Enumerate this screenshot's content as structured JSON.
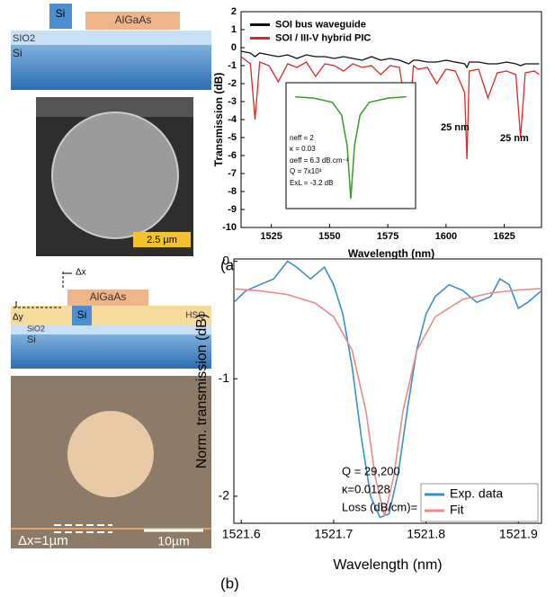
{
  "figure": {
    "panel_a": {
      "label": "(a)",
      "schematic": {
        "top_left": "Si",
        "top_right": "AlGaAs",
        "middle": "SIO2",
        "bottom": "Si"
      },
      "sem_image": {
        "scale_bar": "2.5 µm"
      }
    },
    "panel_b": {
      "label": "(b)",
      "schematic": {
        "dx": "Δx",
        "dy": "Δy",
        "cladding": "AlGaAs",
        "waveguide": "Si",
        "hsq": "HSQ",
        "oxide": "SiO2",
        "substrate": "Si"
      },
      "microscope_image": {
        "offset": "Δx=1µm",
        "scale_bar": "10µm"
      }
    }
  },
  "chart_data": [
    {
      "type": "line",
      "xlabel": "Wavelength (nm)",
      "ylabel": "Transmission (dB)",
      "x": [
        1512,
        1516,
        1518,
        1520,
        1524,
        1528,
        1532,
        1536,
        1540,
        1544,
        1548,
        1552,
        1556,
        1560,
        1564,
        1568,
        1572,
        1576,
        1580,
        1584,
        1586,
        1588,
        1592,
        1596,
        1600,
        1604,
        1608,
        1609,
        1610,
        1614,
        1618,
        1622,
        1626,
        1630,
        1632,
        1634,
        1638,
        1640
      ],
      "series": [
        {
          "name": "SOI bus waveguide",
          "color": "#111111",
          "values": [
            -0.2,
            -0.3,
            -0.5,
            -0.3,
            -0.4,
            -0.5,
            -0.4,
            -0.6,
            -0.4,
            -0.5,
            -0.5,
            -0.6,
            -0.5,
            -0.6,
            -0.7,
            -0.5,
            -0.7,
            -0.6,
            -0.7,
            -0.9,
            -0.7,
            -0.7,
            -0.8,
            -0.8,
            -0.7,
            -0.8,
            -0.9,
            -1.1,
            -0.8,
            -0.8,
            -0.9,
            -0.9,
            -0.8,
            -0.9,
            -1.0,
            -0.9,
            -0.9,
            -0.9
          ]
        },
        {
          "name": "SOI / III-V hybrid PIC",
          "color": "#d42a2a",
          "values": [
            -0.5,
            -0.9,
            -4,
            -0.8,
            -1.0,
            -1.9,
            -0.9,
            -1.1,
            -0.8,
            -1.6,
            -0.9,
            -1.0,
            -1.3,
            -0.9,
            -1.1,
            -1.0,
            -1.5,
            -1.0,
            -1.1,
            -4.5,
            -1.0,
            -1.2,
            -1.1,
            -2.0,
            -1.2,
            -1.3,
            -2.5,
            -6.2,
            -1.3,
            -1.2,
            -2.8,
            -1.4,
            -1.3,
            -1.5,
            -5.0,
            -1.4,
            -1.3,
            -1.5
          ]
        }
      ],
      "xlim": [
        1512,
        1641
      ],
      "xticks": [
        1525,
        1550,
        1575,
        1600,
        1625
      ],
      "ylim": [
        -10,
        2
      ],
      "yticks": [
        -10,
        -9,
        -8,
        -7,
        -6,
        -5,
        -4,
        -3,
        -2,
        -1,
        0,
        1,
        2
      ],
      "legend": "upper left",
      "grid": false,
      "annotations": [
        "25 nm",
        "25 nm"
      ]
    },
    {
      "type": "line",
      "x": [
        1558,
        1559,
        1560,
        1560.5,
        1560.8,
        1561,
        1561.2,
        1561.5,
        1562,
        1563,
        1564
      ],
      "values": [
        -1,
        -1.1,
        -1.4,
        -2.3,
        -4.5,
        -8.3,
        -4.5,
        -2.3,
        -1.4,
        -1.1,
        -1
      ],
      "color": "#3a9a2a",
      "xlim": [
        1557.5,
        1564.5
      ],
      "ylim": [
        -9,
        0
      ],
      "grid": false,
      "annotations": [
        "neff = 2",
        "κ = 0.03",
        "αeff = 6.3 dB.cm⁻¹",
        "Q = 7x10³",
        "ExL = -3.2 dB"
      ]
    },
    {
      "type": "line",
      "xlabel": "Wavelength (nm)",
      "ylabel": "Norm. transmission (dB)",
      "series": [
        {
          "name": "Exp. data",
          "color": "#3a8fc8",
          "x": [
            1521.592,
            1521.605,
            1521.62,
            1521.635,
            1521.65,
            1521.66,
            1521.675,
            1521.69,
            1521.7,
            1521.71,
            1521.72,
            1521.73,
            1521.74,
            1521.75,
            1521.76,
            1521.77,
            1521.78,
            1521.79,
            1521.8,
            1521.81,
            1521.825,
            1521.84,
            1521.855,
            1521.87,
            1521.88,
            1521.89,
            1521.9,
            1521.91,
            1521.925
          ],
          "values": [
            -0.35,
            -0.25,
            -0.2,
            -0.15,
            0,
            -0.05,
            -0.15,
            -0.05,
            -0.2,
            -0.45,
            -0.9,
            -1.5,
            -2.0,
            -2.18,
            -2.15,
            -1.8,
            -1.25,
            -0.75,
            -0.45,
            -0.3,
            -0.2,
            -0.25,
            -0.35,
            -0.3,
            -0.15,
            -0.2,
            -0.4,
            -0.35,
            -0.25
          ]
        },
        {
          "name": "Fit",
          "color": "#e88a8a",
          "x": [
            1521.592,
            1521.62,
            1521.65,
            1521.68,
            1521.7,
            1521.72,
            1521.735,
            1521.745,
            1521.755,
            1521.765,
            1521.775,
            1521.79,
            1521.81,
            1521.84,
            1521.87,
            1521.9,
            1521.925
          ],
          "values": [
            -0.235,
            -0.251,
            -0.283,
            -0.356,
            -0.472,
            -0.758,
            -1.279,
            -1.832,
            -2.17,
            -1.832,
            -1.279,
            -0.758,
            -0.472,
            -0.324,
            -0.27,
            -0.244,
            -0.232
          ]
        }
      ],
      "xlim": [
        1521.592,
        1521.925
      ],
      "xticks": [
        1521.6,
        1521.7,
        1521.8,
        1521.9
      ],
      "ylim": [
        -2.23,
        0.02
      ],
      "yticks": [
        -2,
        -1,
        0
      ],
      "legend": "lower right",
      "grid": false,
      "annotations": [
        "Q = 29,200",
        "κ=0.0128",
        "Loss (dB/cm)= 1.4"
      ]
    }
  ]
}
